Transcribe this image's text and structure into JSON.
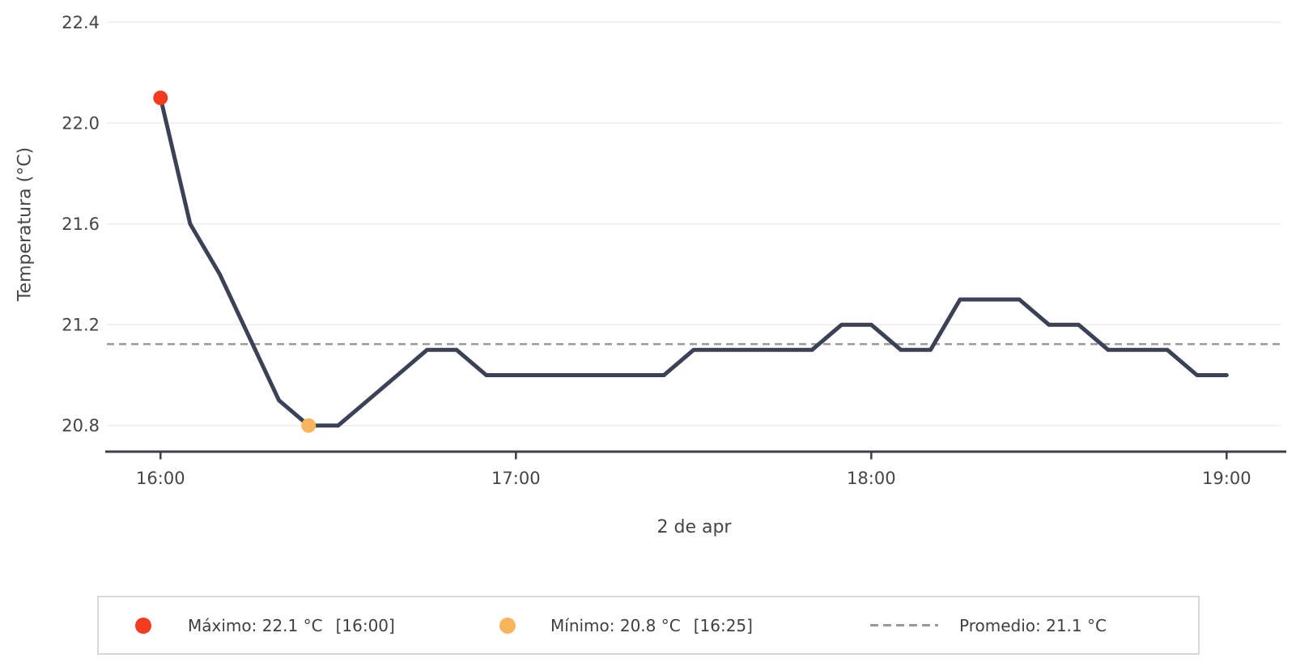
{
  "chart_data": {
    "type": "line",
    "title": "",
    "xlabel": "2 de apr",
    "ylabel": "Temperatura (°C)",
    "grid": "horizontal-only",
    "legend_position": "bottom",
    "ylim": [
      20.7,
      22.4
    ],
    "yticks": [
      20.8,
      21.2,
      21.6,
      22.0,
      22.4
    ],
    "xticks": [
      "16:00",
      "17:00",
      "18:00",
      "19:00"
    ],
    "series": [
      {
        "name": "Temperatura",
        "color": "#3b4256",
        "points": [
          [
            "16:00",
            22.1
          ],
          [
            "16:05",
            21.6
          ],
          [
            "16:10",
            21.4
          ],
          [
            "16:15",
            21.15
          ],
          [
            "16:20",
            20.9
          ],
          [
            "16:25",
            20.8
          ],
          [
            "16:30",
            20.8
          ],
          [
            "16:35",
            20.9
          ],
          [
            "16:40",
            21.0
          ],
          [
            "16:45",
            21.1
          ],
          [
            "16:50",
            21.1
          ],
          [
            "16:55",
            21.0
          ],
          [
            "17:00",
            21.0
          ],
          [
            "17:05",
            21.0
          ],
          [
            "17:10",
            21.0
          ],
          [
            "17:15",
            21.0
          ],
          [
            "17:20",
            21.0
          ],
          [
            "17:25",
            21.0
          ],
          [
            "17:30",
            21.1
          ],
          [
            "17:35",
            21.1
          ],
          [
            "17:40",
            21.1
          ],
          [
            "17:45",
            21.1
          ],
          [
            "17:50",
            21.1
          ],
          [
            "17:55",
            21.2
          ],
          [
            "18:00",
            21.2
          ],
          [
            "18:05",
            21.1
          ],
          [
            "18:10",
            21.1
          ],
          [
            "18:15",
            21.3
          ],
          [
            "18:20",
            21.3
          ],
          [
            "18:25",
            21.3
          ],
          [
            "18:30",
            21.2
          ],
          [
            "18:35",
            21.2
          ],
          [
            "18:40",
            21.1
          ],
          [
            "18:45",
            21.1
          ],
          [
            "18:50",
            21.1
          ],
          [
            "18:55",
            21.0
          ],
          [
            "19:00",
            21.0
          ]
        ]
      }
    ],
    "annotations": {
      "max": {
        "label": "Máximo",
        "value": 22.1,
        "unit": "°C",
        "time": "16:00",
        "color": "#f43b1e"
      },
      "min": {
        "label": "Mínimo",
        "value": 20.8,
        "unit": "°C",
        "time": "16:25",
        "color": "#f9b55c"
      },
      "mean": {
        "label": "Promedio",
        "value": 21.1,
        "unit": "°C",
        "style": "dashed",
        "color": "#98989d"
      }
    }
  },
  "legend": {
    "items": [
      {
        "marker": "dot",
        "color": "#f43b1e",
        "label": "Máximo: 22.1 °C",
        "time": "[16:00]"
      },
      {
        "marker": "dot",
        "color": "#f9b55c",
        "label": "Mínimo: 20.8 °C",
        "time": "[16:25]"
      },
      {
        "marker": "dash",
        "color": "#98989d",
        "label": "Promedio: 21.1 °C",
        "time": ""
      }
    ]
  }
}
